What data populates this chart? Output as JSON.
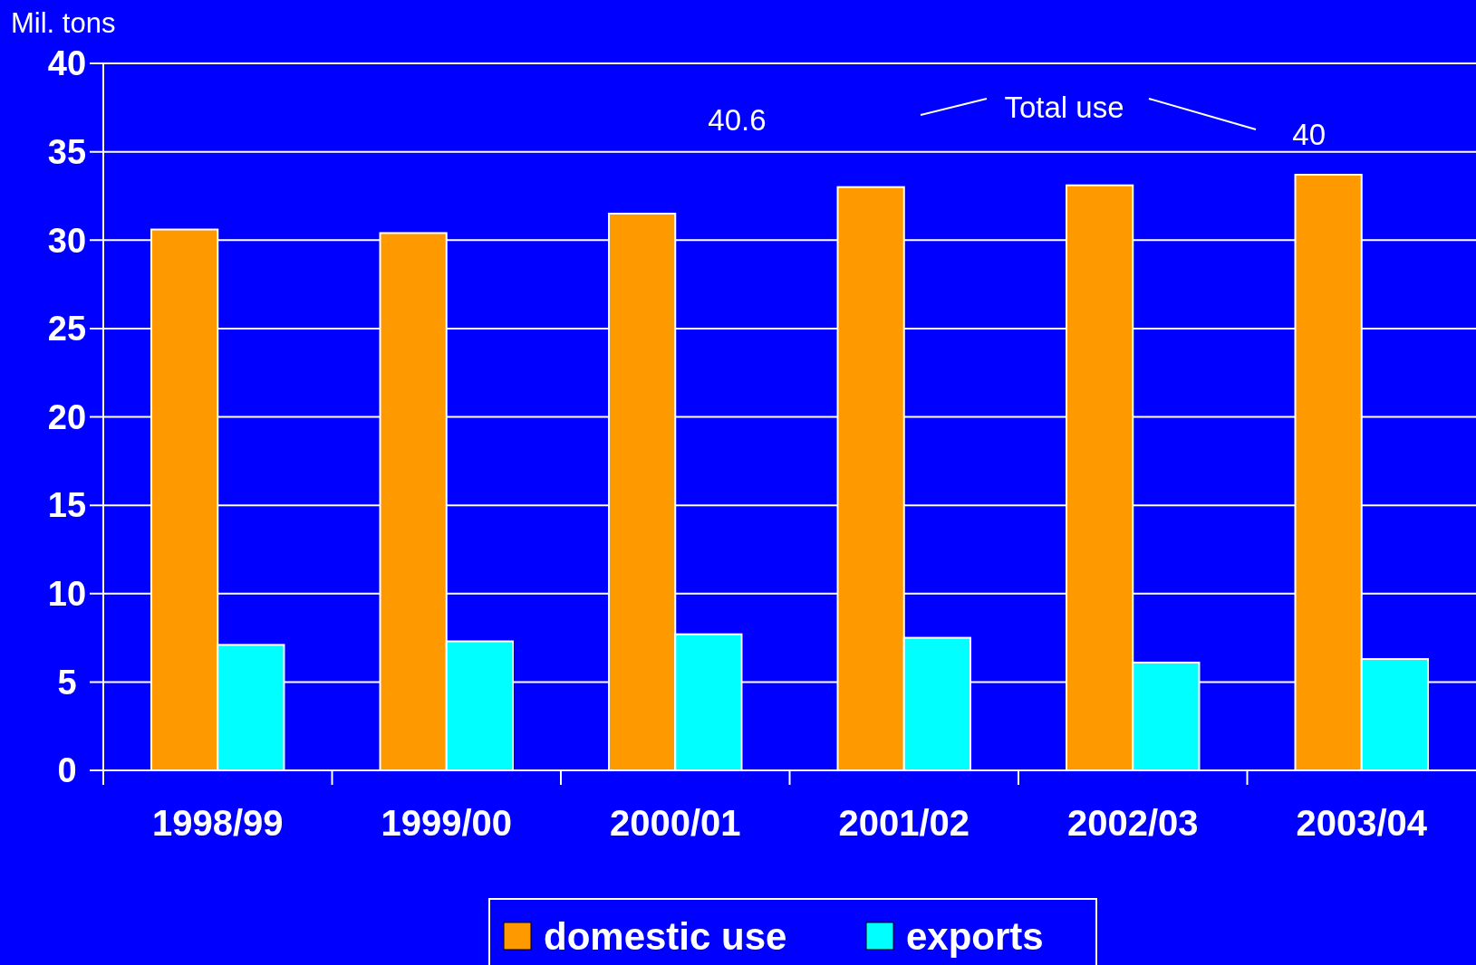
{
  "chart_data": {
    "type": "bar",
    "ylabel": "Mil. tons",
    "categories": [
      "1998/99",
      "1999/00",
      "2000/01",
      "2001/02",
      "2002/03",
      "2003/04"
    ],
    "series": [
      {
        "name": "domestic use",
        "color": "#ff9900",
        "values": [
          30.6,
          30.4,
          31.5,
          33.0,
          33.1,
          33.7
        ]
      },
      {
        "name": "exports",
        "color": "#00ffff",
        "values": [
          7.1,
          7.3,
          7.7,
          7.5,
          6.1,
          6.3
        ]
      }
    ],
    "ylim": [
      0,
      40
    ],
    "yticks": [
      0,
      5,
      10,
      15,
      20,
      25,
      30,
      35,
      40
    ],
    "grid": "y",
    "legend": "bottom",
    "annotations": [
      "Total use",
      "40.6",
      "40"
    ]
  }
}
